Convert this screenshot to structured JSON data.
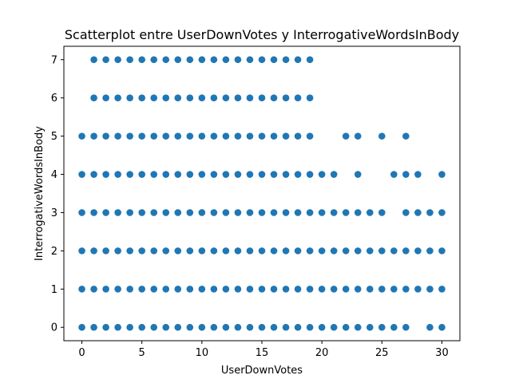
{
  "chart_data": {
    "type": "scatter",
    "title": "Scatterplot entre UserDownVotes y InterrogativeWordsInBody",
    "xlabel": "UserDownVotes",
    "ylabel": "InterrogativeWordsInBody",
    "xlim": [
      -1.5,
      31.5
    ],
    "ylim": [
      -0.35,
      7.35
    ],
    "xticks": [
      0,
      5,
      10,
      15,
      20,
      25,
      30
    ],
    "yticks": [
      0,
      1,
      2,
      3,
      4,
      5,
      6,
      7
    ],
    "grid": false,
    "legend": "none",
    "marker_color": "#1f77b4",
    "rows": [
      {
        "y": 0,
        "x": [
          0,
          1,
          2,
          3,
          4,
          5,
          6,
          7,
          8,
          9,
          10,
          11,
          12,
          13,
          14,
          15,
          16,
          17,
          18,
          19,
          20,
          21,
          22,
          23,
          24,
          25,
          26,
          27,
          29,
          30
        ]
      },
      {
        "y": 1,
        "x": [
          0,
          1,
          2,
          3,
          4,
          5,
          6,
          7,
          8,
          9,
          10,
          11,
          12,
          13,
          14,
          15,
          16,
          17,
          18,
          19,
          20,
          21,
          22,
          23,
          24,
          25,
          26,
          27,
          28,
          29,
          30
        ]
      },
      {
        "y": 2,
        "x": [
          0,
          1,
          2,
          3,
          4,
          5,
          6,
          7,
          8,
          9,
          10,
          11,
          12,
          13,
          14,
          15,
          16,
          17,
          18,
          19,
          20,
          21,
          22,
          23,
          24,
          25,
          26,
          27,
          28,
          29,
          30
        ]
      },
      {
        "y": 3,
        "x": [
          0,
          1,
          2,
          3,
          4,
          5,
          6,
          7,
          8,
          9,
          10,
          11,
          12,
          13,
          14,
          15,
          16,
          17,
          18,
          19,
          20,
          21,
          22,
          23,
          24,
          25,
          27,
          28,
          29,
          30
        ]
      },
      {
        "y": 4,
        "x": [
          0,
          1,
          2,
          3,
          4,
          5,
          6,
          7,
          8,
          9,
          10,
          11,
          12,
          13,
          14,
          15,
          16,
          17,
          18,
          19,
          20,
          21,
          23,
          26,
          27,
          28,
          30
        ]
      },
      {
        "y": 5,
        "x": [
          0,
          1,
          2,
          3,
          4,
          5,
          6,
          7,
          8,
          9,
          10,
          11,
          12,
          13,
          14,
          15,
          16,
          17,
          18,
          19,
          22,
          23,
          25,
          27
        ]
      },
      {
        "y": 6,
        "x": [
          1,
          2,
          3,
          4,
          5,
          6,
          7,
          8,
          9,
          10,
          11,
          12,
          13,
          14,
          15,
          16,
          17,
          18,
          19
        ]
      },
      {
        "y": 7,
        "x": [
          1,
          2,
          3,
          4,
          5,
          6,
          7,
          8,
          9,
          10,
          11,
          12,
          13,
          14,
          15,
          16,
          17,
          18,
          19
        ]
      }
    ]
  }
}
